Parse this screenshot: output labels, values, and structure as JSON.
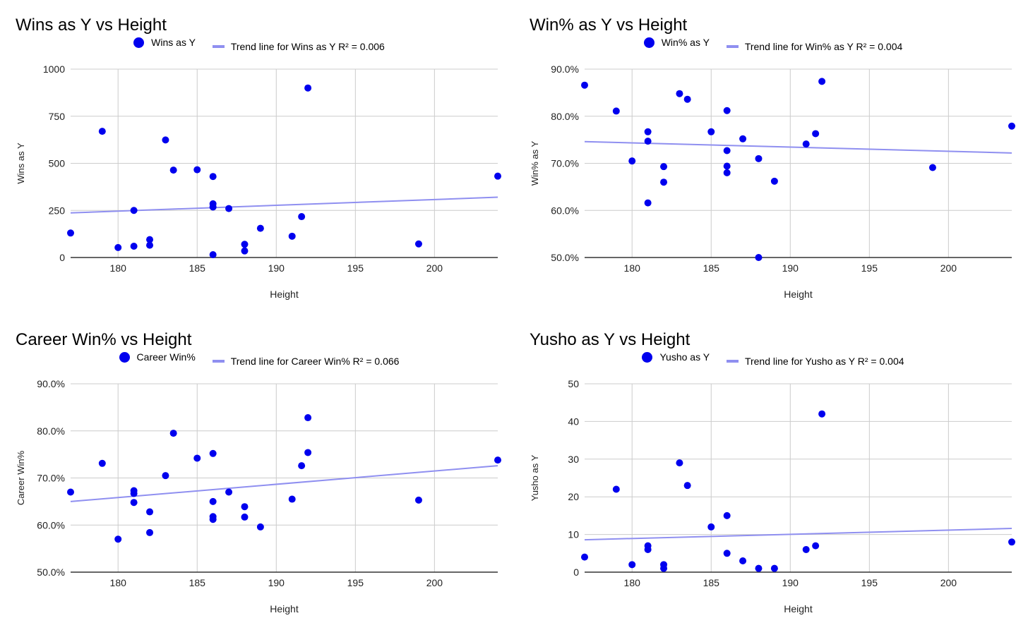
{
  "chart_data": [
    {
      "type": "scatter",
      "title": "Wins as Y vs Height",
      "xlabel": "Height",
      "ylabel": "Wins as Y",
      "xlim": [
        177,
        204
      ],
      "ylim": [
        0,
        1000
      ],
      "yformat": "int",
      "xticks": [
        180,
        185,
        190,
        195,
        200
      ],
      "yticks": [
        0,
        250,
        500,
        750,
        1000
      ],
      "grid": true,
      "legend_position": "top",
      "series": [
        {
          "name": "Wins as Y",
          "kind": "points",
          "color": "#0000ee",
          "points": [
            [
              177,
              130
            ],
            [
              179,
              670
            ],
            [
              180,
              53
            ],
            [
              181,
              250
            ],
            [
              181,
              60
            ],
            [
              182,
              95
            ],
            [
              182,
              65
            ],
            [
              183,
              624
            ],
            [
              183.5,
              464
            ],
            [
              185,
              466
            ],
            [
              186,
              430
            ],
            [
              186,
              285
            ],
            [
              186,
              268
            ],
            [
              186,
              15
            ],
            [
              187,
              260
            ],
            [
              188,
              70
            ],
            [
              188,
              35
            ],
            [
              189,
              155
            ],
            [
              191,
              113
            ],
            [
              191.6,
              217
            ],
            [
              192,
              900
            ],
            [
              199,
              72
            ],
            [
              204,
              432
            ]
          ]
        },
        {
          "name": "Trend line for Wins as Y R² = 0.006",
          "kind": "trend",
          "color": "#8f8ff0",
          "points": [
            [
              177,
              237
            ],
            [
              204,
              320
            ]
          ]
        }
      ]
    },
    {
      "type": "scatter",
      "title": "Win% as Y vs Height",
      "xlabel": "Height",
      "ylabel": "Win% as Y",
      "xlim": [
        177,
        204
      ],
      "ylim": [
        50,
        90
      ],
      "yformat": "pct",
      "xticks": [
        180,
        185,
        190,
        195,
        200
      ],
      "yticks": [
        50,
        60,
        70,
        80,
        90
      ],
      "grid": true,
      "legend_position": "top",
      "series": [
        {
          "name": "Win% as Y",
          "kind": "points",
          "color": "#0000ee",
          "points": [
            [
              177,
              86.6
            ],
            [
              179,
              81.1
            ],
            [
              180,
              70.5
            ],
            [
              181,
              76.7
            ],
            [
              181,
              74.7
            ],
            [
              181,
              61.6
            ],
            [
              182,
              69.3
            ],
            [
              182,
              66.0
            ],
            [
              183,
              84.8
            ],
            [
              183.5,
              83.6
            ],
            [
              185,
              76.7
            ],
            [
              186,
              81.2
            ],
            [
              186,
              72.7
            ],
            [
              186,
              69.4
            ],
            [
              186,
              68.0
            ],
            [
              187,
              75.2
            ],
            [
              188,
              71.0
            ],
            [
              188,
              50.0
            ],
            [
              189,
              66.2
            ],
            [
              191,
              74.1
            ],
            [
              191.6,
              76.3
            ],
            [
              192,
              87.4
            ],
            [
              199,
              69.1
            ],
            [
              204,
              77.9
            ]
          ]
        },
        {
          "name": "Trend line for Win% as Y R² = 0.004",
          "kind": "trend",
          "color": "#8f8ff0",
          "points": [
            [
              177,
              74.6
            ],
            [
              204,
              72.2
            ]
          ]
        }
      ]
    },
    {
      "type": "scatter",
      "title": "Career Win% vs Height",
      "xlabel": "Height",
      "ylabel": "Career Win%",
      "xlim": [
        177,
        204
      ],
      "ylim": [
        50,
        90
      ],
      "yformat": "pct",
      "xticks": [
        180,
        185,
        190,
        195,
        200
      ],
      "yticks": [
        50,
        60,
        70,
        80,
        90
      ],
      "grid": true,
      "legend_position": "top",
      "series": [
        {
          "name": "Career Win%",
          "kind": "points",
          "color": "#0000ee",
          "points": [
            [
              177,
              67.0
            ],
            [
              179,
              73.1
            ],
            [
              180,
              57.0
            ],
            [
              181,
              67.3
            ],
            [
              181,
              66.7
            ],
            [
              181,
              64.8
            ],
            [
              182,
              62.8
            ],
            [
              182,
              58.4
            ],
            [
              183,
              70.5
            ],
            [
              183.5,
              79.5
            ],
            [
              185,
              74.2
            ],
            [
              186,
              75.2
            ],
            [
              186,
              65.0
            ],
            [
              186,
              61.8
            ],
            [
              186,
              61.2
            ],
            [
              187,
              67.0
            ],
            [
              188,
              63.9
            ],
            [
              188,
              61.7
            ],
            [
              189,
              59.6
            ],
            [
              191,
              65.5
            ],
            [
              191.6,
              72.6
            ],
            [
              192,
              82.8
            ],
            [
              192,
              75.4
            ],
            [
              199,
              65.3
            ],
            [
              204,
              73.8
            ]
          ]
        },
        {
          "name": "Trend line for Career Win% R² = 0.066",
          "kind": "trend",
          "color": "#8f8ff0",
          "points": [
            [
              177,
              65.0
            ],
            [
              204,
              72.6
            ]
          ]
        }
      ]
    },
    {
      "type": "scatter",
      "title": "Yusho as Y vs Height",
      "xlabel": "Height",
      "ylabel": "Yusho as Y",
      "xlim": [
        177,
        204
      ],
      "ylim": [
        0,
        50
      ],
      "yformat": "int",
      "xticks": [
        180,
        185,
        190,
        195,
        200
      ],
      "yticks": [
        0,
        10,
        20,
        30,
        40,
        50
      ],
      "grid": true,
      "legend_position": "top",
      "series": [
        {
          "name": "Yusho as Y",
          "kind": "points",
          "color": "#0000ee",
          "points": [
            [
              177,
              4
            ],
            [
              179,
              22
            ],
            [
              180,
              2
            ],
            [
              181,
              7
            ],
            [
              181,
              6
            ],
            [
              182,
              2
            ],
            [
              182,
              1
            ],
            [
              183,
              29
            ],
            [
              183.5,
              23
            ],
            [
              185,
              12
            ],
            [
              186,
              15
            ],
            [
              186,
              5
            ],
            [
              187,
              3
            ],
            [
              188,
              1
            ],
            [
              189,
              1
            ],
            [
              191,
              6
            ],
            [
              191.6,
              7
            ],
            [
              192,
              42
            ],
            [
              204,
              8
            ]
          ]
        },
        {
          "name": "Trend line for Yusho as Y R² = 0.004",
          "kind": "trend",
          "color": "#8f8ff0",
          "points": [
            [
              177,
              8.6
            ],
            [
              204,
              11.6
            ]
          ]
        }
      ]
    }
  ]
}
